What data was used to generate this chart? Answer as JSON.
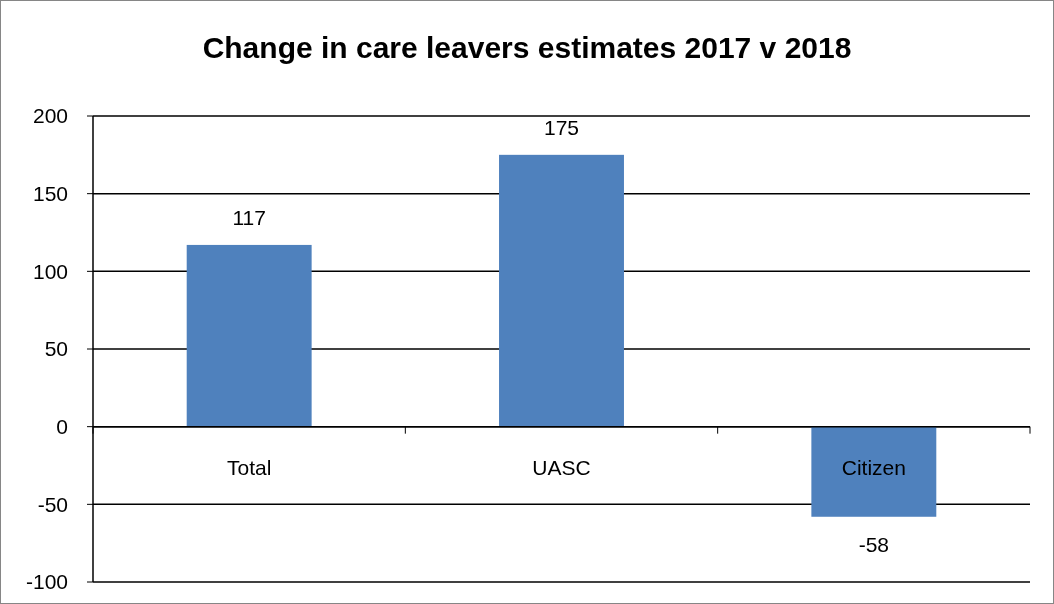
{
  "chart_data": {
    "type": "bar",
    "title": "Change in care leavers estimates 2017 v 2018",
    "categories": [
      "Total",
      "UASC",
      "Citizen"
    ],
    "values": [
      117,
      175,
      -58
    ],
    "color": "#4f81bd",
    "ylim": [
      -100,
      200
    ],
    "yticks": [
      -100,
      -50,
      0,
      50,
      100,
      150,
      200
    ],
    "grid": "y",
    "data_labels": true
  }
}
